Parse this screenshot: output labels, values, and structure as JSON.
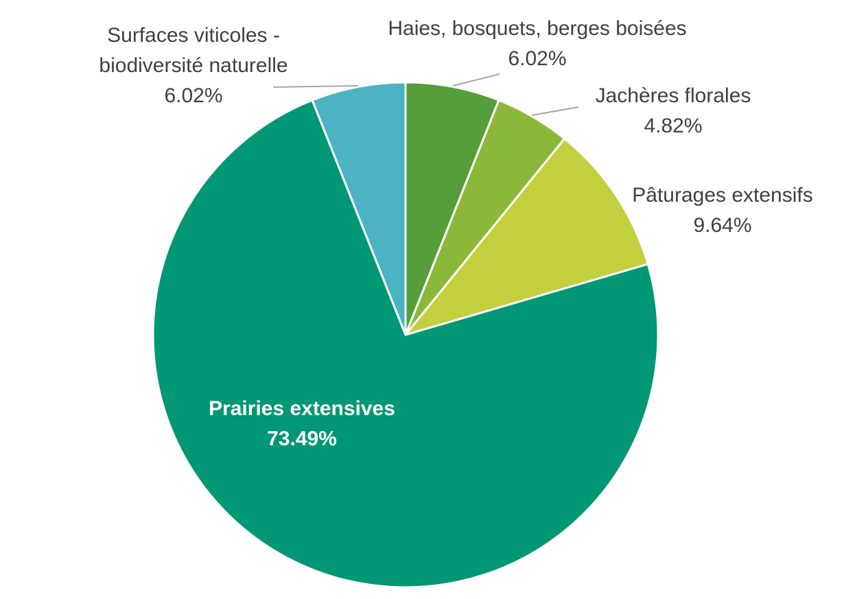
{
  "chart_data": {
    "type": "pie",
    "categories": [
      "Haies, bosquets, berges boisées",
      "Jachères florales",
      "Pâturages extensifs",
      "Prairies extensives",
      "Surfaces viticoles - biodiversité naturelle"
    ],
    "values": [
      6.02,
      4.82,
      9.64,
      73.49,
      6.02
    ],
    "value_labels": [
      "6.02%",
      "4.82%",
      "9.64%",
      "73.49%",
      "6.02%"
    ],
    "colors": [
      "#559e3a",
      "#8cb83a",
      "#c3cf3d",
      "#029775",
      "#4bb3c3"
    ]
  }
}
